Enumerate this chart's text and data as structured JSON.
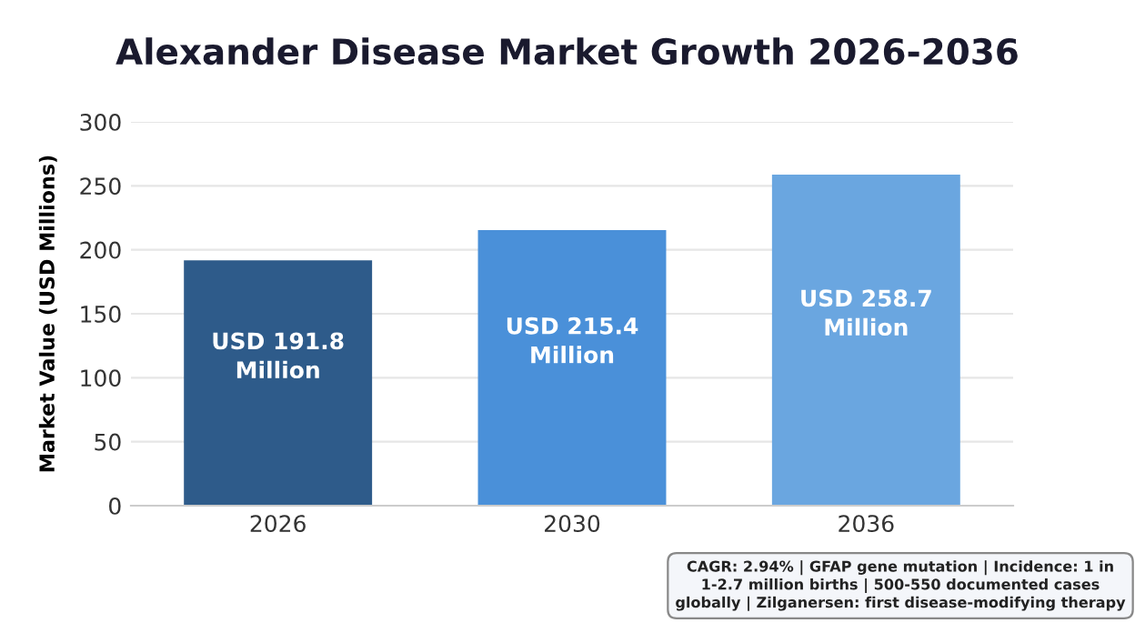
{
  "chart_data": {
    "type": "bar",
    "title": "Alexander Disease Market Growth 2026-2036",
    "ylabel": "Market Value (USD Millions)",
    "categories": [
      "2026",
      "2030",
      "2036"
    ],
    "values": [
      191.8,
      215.4,
      258.7
    ],
    "colors": [
      "#2e5b8a",
      "#4a90d9",
      "#6aa6e0"
    ],
    "value_labels": [
      "USD 191.8\nMillion",
      "USD 215.4\nMillion",
      "USD 258.7\nMillion"
    ],
    "ylim": [
      0,
      300
    ],
    "yticks": [
      0,
      50,
      100,
      150,
      200,
      250,
      300
    ],
    "grid": "y",
    "legend": false,
    "annotations": [
      "CAGR: 2.94% | GFAP gene mutation | Incidence: 1 in 1-2.7 million births | 500-550 documented cases globally | Zilganersen: first disease-modifying therapy"
    ]
  }
}
